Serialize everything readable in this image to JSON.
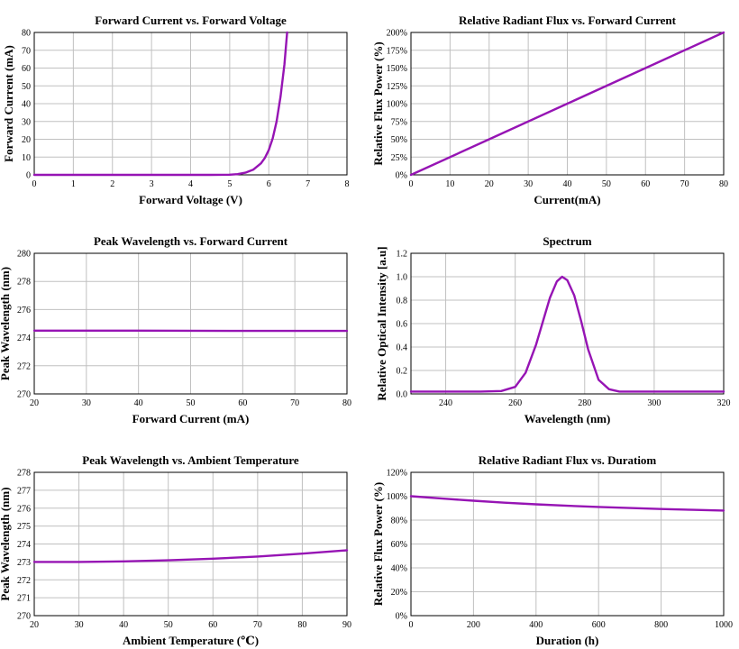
{
  "chart_data": [
    {
      "type": "line",
      "title": "Forward Current vs. Forward Voltage",
      "xlabel": "Forward Voltage (V)",
      "ylabel": "Forward Current (mA)",
      "xlim": [
        0,
        8
      ],
      "ylim": [
        0,
        80
      ],
      "xticks": [
        "0",
        "1",
        "2",
        "3",
        "4",
        "5",
        "6",
        "7",
        "8"
      ],
      "yticks": [
        "0",
        "10",
        "20",
        "30",
        "40",
        "50",
        "60",
        "70",
        "80"
      ],
      "grid": true,
      "color": "#9614b4",
      "x": [
        0,
        4.5,
        5.0,
        5.2,
        5.4,
        5.6,
        5.8,
        5.9,
        6.0,
        6.1,
        6.2,
        6.3,
        6.4,
        6.47
      ],
      "y": [
        0,
        0,
        0.1,
        0.4,
        1.2,
        2.9,
        6.5,
        9.5,
        14,
        20.5,
        30,
        44,
        62,
        80
      ]
    },
    {
      "type": "line",
      "title": "Relative Radiant Flux vs. Forward Current",
      "xlabel": "Current(mA)",
      "ylabel": "Relative Flux Power (%)",
      "xlim": [
        0,
        80
      ],
      "ylim": [
        0,
        200
      ],
      "xticks": [
        "0",
        "10",
        "20",
        "30",
        "40",
        "50",
        "60",
        "70",
        "80"
      ],
      "yticks": [
        "0%",
        "25%",
        "50%",
        "75%",
        "100%",
        "125%",
        "150%",
        "175%",
        "200%"
      ],
      "grid": true,
      "color": "#9614b4",
      "x": [
        0,
        20,
        40,
        60,
        80
      ],
      "y": [
        0,
        50,
        100,
        150,
        200
      ]
    },
    {
      "type": "line",
      "title": "Peak Wavelength vs. Forward Current",
      "xlabel": "Forward Current (mA)",
      "ylabel": "Peak Wavelength (nm)",
      "xlim": [
        20,
        80
      ],
      "ylim": [
        270,
        280
      ],
      "xticks": [
        "20",
        "30",
        "40",
        "50",
        "60",
        "70",
        "80"
      ],
      "yticks": [
        "270",
        "272",
        "274",
        "276",
        "278",
        "280"
      ],
      "grid": true,
      "color": "#9614b4",
      "x": [
        20,
        40,
        60,
        80
      ],
      "y": [
        274.5,
        274.5,
        274.48,
        274.48
      ]
    },
    {
      "type": "line",
      "title": "Spectrum",
      "xlabel": "Wavelength (nm)",
      "ylabel": "Relative Optical Intensity [a.u]",
      "xlim": [
        230,
        320
      ],
      "ylim": [
        0,
        1.2
      ],
      "xticks": [
        "240",
        "260",
        "280",
        "300",
        "320"
      ],
      "xtick_values": [
        240,
        260,
        280,
        300,
        320
      ],
      "yticks": [
        "0.0",
        "0.2",
        "0.4",
        "0.6",
        "0.8",
        "1.0",
        "1.2"
      ],
      "grid": true,
      "color": "#9614b4",
      "x": [
        230,
        250,
        256,
        260,
        263,
        266,
        268,
        270,
        272,
        273.5,
        275,
        277,
        279,
        281,
        284,
        287,
        290,
        300,
        320
      ],
      "y": [
        0.02,
        0.02,
        0.025,
        0.06,
        0.18,
        0.42,
        0.62,
        0.82,
        0.96,
        1.0,
        0.97,
        0.84,
        0.62,
        0.38,
        0.12,
        0.04,
        0.02,
        0.02,
        0.02
      ]
    },
    {
      "type": "line",
      "title": "Peak Wavelength vs. Ambient Temperature",
      "xlabel": "Ambient Temperature (℃)",
      "ylabel": "Peak Wavelength (nm)",
      "xlim": [
        20,
        90
      ],
      "ylim": [
        270,
        278
      ],
      "xticks": [
        "20",
        "30",
        "40",
        "50",
        "60",
        "70",
        "80",
        "90"
      ],
      "yticks": [
        "270",
        "271",
        "272",
        "273",
        "274",
        "275",
        "276",
        "277",
        "278"
      ],
      "grid": true,
      "color": "#9614b4",
      "x": [
        20,
        30,
        40,
        50,
        60,
        70,
        80,
        90
      ],
      "y": [
        273.0,
        273.0,
        273.03,
        273.09,
        273.18,
        273.3,
        273.46,
        273.65
      ]
    },
    {
      "type": "line",
      "title": "Relative Radiant Flux vs. Duratiom",
      "xlabel": "Duration (h)",
      "ylabel": "Relative Flux Power (%)",
      "xlim": [
        0,
        1000
      ],
      "ylim": [
        0,
        120
      ],
      "xticks": [
        "0",
        "200",
        "400",
        "600",
        "800",
        "1000"
      ],
      "yticks": [
        "0%",
        "20%",
        "40%",
        "60%",
        "80%",
        "100%",
        "120%"
      ],
      "grid": true,
      "color": "#9614b4",
      "x": [
        0,
        100,
        200,
        300,
        400,
        500,
        600,
        700,
        800,
        900,
        1000
      ],
      "y": [
        100,
        98,
        96.2,
        94.6,
        93.2,
        92,
        91,
        90.1,
        89.3,
        88.6,
        88
      ]
    }
  ]
}
